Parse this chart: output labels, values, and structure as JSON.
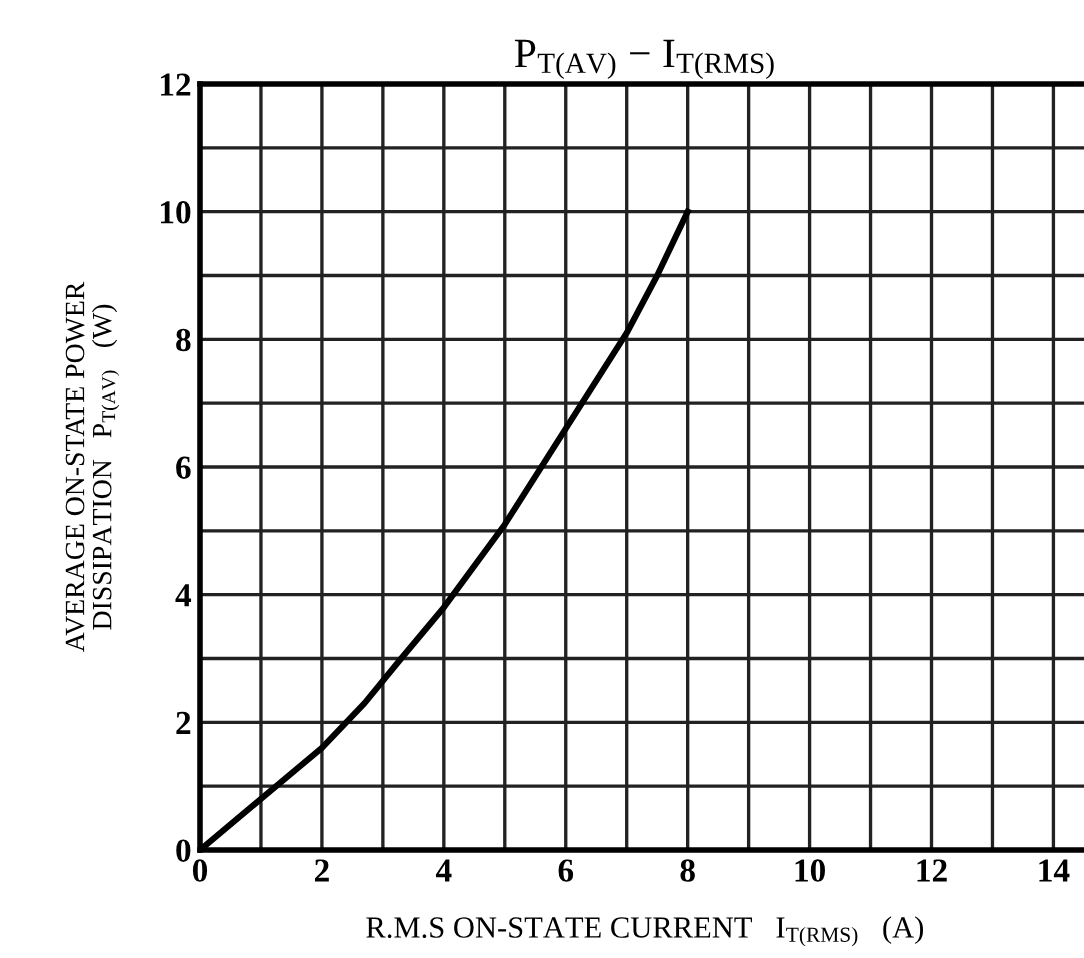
{
  "chart_data": {
    "type": "line",
    "title": "P$_{T(AV)}$ − I$_{T(RMS)}$",
    "xlabel": "R.M.S ON-STATE CURRENT   I$_{T(RMS)}$   (A)",
    "ylabel": "AVERAGE ON-STATE POWER\nDISSIPATION   P$_{T(AV)}$   (W)",
    "series": [
      {
        "color": "#000000",
        "x": [
          0,
          1,
          2,
          2.7,
          3.3,
          4,
          5,
          6,
          7,
          7.5,
          8
        ],
        "values": [
          0,
          0.8,
          1.6,
          2.3,
          3.0,
          3.8,
          5.1,
          6.6,
          8.1,
          9.0,
          10.0
        ]
      }
    ],
    "xlim": [
      0,
      14.6
    ],
    "ylim": [
      0,
      12
    ],
    "xticks": [
      0,
      {
        "value": 1,
        "label": null
      },
      2,
      {
        "value": 3,
        "label": null
      },
      4,
      {
        "value": 5,
        "label": null
      },
      6,
      {
        "value": 7,
        "label": null
      },
      8,
      {
        "value": 9,
        "label": null
      },
      10,
      {
        "value": 11,
        "label": null
      },
      12,
      {
        "value": 13,
        "label": null
      },
      14
    ],
    "yticks": [
      0,
      {
        "value": 1,
        "label": null
      },
      2,
      {
        "value": 3,
        "label": null
      },
      4,
      {
        "value": 5,
        "label": null
      },
      6,
      {
        "value": 7,
        "label": null
      },
      8,
      {
        "value": 9,
        "label": null
      },
      10,
      {
        "value": 11,
        "label": null
      },
      12
    ],
    "grid": true,
    "marker": "none",
    "line_style": "solid",
    "legend": false
  }
}
